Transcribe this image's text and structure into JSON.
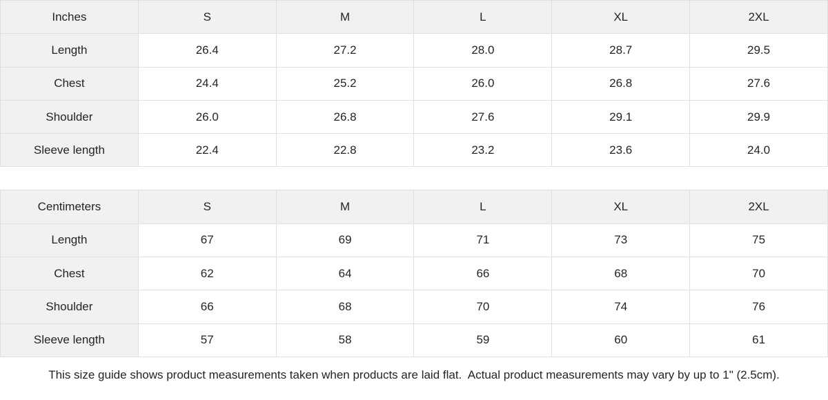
{
  "colors": {
    "header_bg": "#f1f1f1",
    "border": "#e0e0e0",
    "text": "#242424"
  },
  "tables": [
    {
      "unit_label": "Inches",
      "sizes": [
        "S",
        "M",
        "L",
        "XL",
        "2XL"
      ],
      "rows": [
        {
          "label": "Length",
          "values": [
            "26.4",
            "27.2",
            "28.0",
            "28.7",
            "29.5"
          ]
        },
        {
          "label": "Chest",
          "values": [
            "24.4",
            "25.2",
            "26.0",
            "26.8",
            "27.6"
          ]
        },
        {
          "label": "Shoulder",
          "values": [
            "26.0",
            "26.8",
            "27.6",
            "29.1",
            "29.9"
          ]
        },
        {
          "label": "Sleeve length",
          "values": [
            "22.4",
            "22.8",
            "23.2",
            "23.6",
            "24.0"
          ]
        }
      ]
    },
    {
      "unit_label": "Centimeters",
      "sizes": [
        "S",
        "M",
        "L",
        "XL",
        "2XL"
      ],
      "rows": [
        {
          "label": "Length",
          "values": [
            "67",
            "69",
            "71",
            "73",
            "75"
          ]
        },
        {
          "label": "Chest",
          "values": [
            "62",
            "64",
            "66",
            "68",
            "70"
          ]
        },
        {
          "label": "Shoulder",
          "values": [
            "66",
            "68",
            "70",
            "74",
            "76"
          ]
        },
        {
          "label": "Sleeve length",
          "values": [
            "57",
            "58",
            "59",
            "60",
            "61"
          ]
        }
      ]
    }
  ],
  "footer": {
    "note": "This size guide shows product measurements taken when products are laid flat.  Actual product measurements may vary by up to 1\" (2.5cm)."
  }
}
